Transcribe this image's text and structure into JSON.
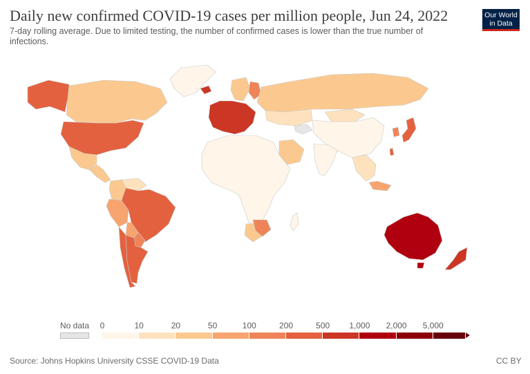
{
  "header": {
    "title": "Daily new confirmed COVID-19 cases per million people, Jun 24, 2022",
    "subtitle": "7-day rolling average. Due to limited testing, the number of confirmed cases is lower than the true number of infections."
  },
  "logo": {
    "line1": "Our World",
    "line2": "in Data",
    "bg_color": "#002147",
    "accent_color": "#ce261e"
  },
  "legend": {
    "no_data_label": "No data",
    "no_data_color": "#e6e6e6",
    "tick_labels": [
      "0",
      "10",
      "20",
      "50",
      "100",
      "200",
      "500",
      "1,000",
      "2,000",
      "5,000"
    ],
    "bin_colors": [
      "#fff6e9",
      "#fde2bd",
      "#fbc98f",
      "#f7a46f",
      "#ef8458",
      "#e4613f",
      "#cc3624",
      "#b00010",
      "#8c0009",
      "#67000d"
    ]
  },
  "map_colors": {
    "ocean": "#ffffff",
    "land_low": "#fff6e9",
    "border": "#c9c9c9"
  },
  "regions": [
    {
      "name": "Canada",
      "bin": 2
    },
    {
      "name": "Alaska",
      "bin": 5
    },
    {
      "name": "United States",
      "bin": 5
    },
    {
      "name": "Mexico",
      "bin": 2
    },
    {
      "name": "Greenland",
      "bin": 0
    },
    {
      "name": "Central America",
      "bin": 2
    },
    {
      "name": "Brazil",
      "bin": 5
    },
    {
      "name": "Peru",
      "bin": 3
    },
    {
      "name": "Colombia",
      "bin": 2
    },
    {
      "name": "Bolivia",
      "bin": 3
    },
    {
      "name": "Chile",
      "bin": 5
    },
    {
      "name": "Argentina",
      "bin": 5
    },
    {
      "name": "Paraguay",
      "bin": 4
    },
    {
      "name": "Venezuela",
      "bin": 1
    },
    {
      "name": "Western Europe",
      "bin": 6
    },
    {
      "name": "Iceland",
      "bin": 6
    },
    {
      "name": "Scandinavia",
      "bin": 2
    },
    {
      "name": "Finland",
      "bin": 4
    },
    {
      "name": "Russia",
      "bin": 2
    },
    {
      "name": "Kazakhstan",
      "bin": 1
    },
    {
      "name": "China",
      "bin": 0
    },
    {
      "name": "Mongolia",
      "bin": 1
    },
    {
      "name": "India",
      "bin": 0
    },
    {
      "name": "Saudi Arabia",
      "bin": 2
    },
    {
      "name": "Africa",
      "bin": 0
    },
    {
      "name": "South Africa",
      "bin": 4
    },
    {
      "name": "Botswana",
      "bin": 2
    },
    {
      "name": "Japan",
      "bin": 5
    },
    {
      "name": "South Korea",
      "bin": 4
    },
    {
      "name": "Taiwan",
      "bin": 5
    },
    {
      "name": "Southeast Asia",
      "bin": 1
    },
    {
      "name": "Malaysia",
      "bin": 3
    },
    {
      "name": "Australia",
      "bin": 7
    },
    {
      "name": "New Zealand",
      "bin": 6
    },
    {
      "name": "Turkmenistan",
      "bin": -1
    }
  ],
  "footer": {
    "source": "Source: Johns Hopkins University CSSE COVID-19 Data",
    "license": "CC BY"
  }
}
